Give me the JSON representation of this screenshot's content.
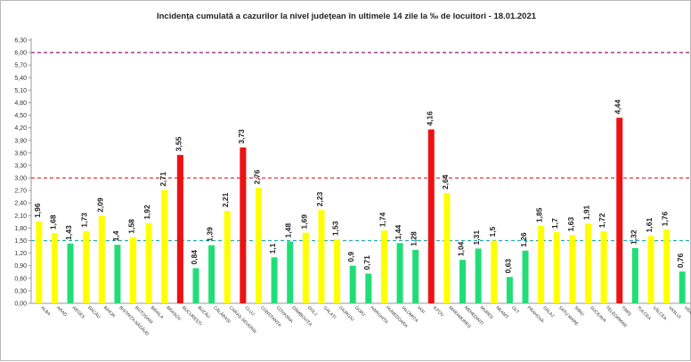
{
  "chart_data": {
    "type": "bar",
    "title": "Incidența cumulată a cazurilor la nivel județean în ultimele 14 zile la ‰ de locuitori - 18.01.2021",
    "xlabel": "",
    "ylabel": "",
    "ylim": [
      0,
      6.3
    ],
    "yticks": [
      "0,00",
      "0,30",
      "0,60",
      "0,90",
      "1,20",
      "1,50",
      "1,80",
      "2,10",
      "2,40",
      "2,70",
      "3,00",
      "3,30",
      "3,60",
      "3,90",
      "4,20",
      "4,50",
      "4,80",
      "5,10",
      "5,40",
      "5,70",
      "6,00",
      "6,30"
    ],
    "grid": false,
    "thresholds": [
      {
        "value": 1.5,
        "color": "#2aa7b5"
      },
      {
        "value": 3.0,
        "color": "#d61f1f"
      },
      {
        "value": 6.0,
        "color": "#8b1a6b"
      }
    ],
    "colors": {
      "green": "#22dd77",
      "yellow": "#ffff00",
      "red": "#ee1111"
    },
    "categories": [
      "ALBA",
      "ARAD",
      "ARGEȘ",
      "BACĂU",
      "BIHOR",
      "BISTRIȚA NĂSĂUD",
      "BOTOȘANI",
      "BRAILA",
      "BRASOV",
      "BUCUREȘTI",
      "BUZĂU",
      "CĂLĂRAȘI",
      "CARAȘ-SEVERIN",
      "CLUJ",
      "CONSTANȚA",
      "COVASNA",
      "DÂMBOVIȚA",
      "DOLJ",
      "GALAȚI",
      "GIURGIU",
      "GORJ",
      "HARGHITA",
      "HUNEDOARA",
      "IALOMIȚA",
      "IAȘI",
      "ILFOV",
      "MARAMUREȘ",
      "MEHEDINȚI",
      "MUREȘ",
      "NEAMȚ",
      "OLT",
      "PRAHOVA",
      "SĂLAJ",
      "SATU MARE",
      "SIBIU",
      "SUCEAVA",
      "TELEORMAN",
      "TIMIȘ",
      "TULCEA",
      "VÂLCEA",
      "VASLUI",
      "VRANCEA"
    ],
    "values": [
      1.96,
      1.68,
      1.43,
      1.73,
      2.09,
      1.4,
      1.58,
      1.92,
      2.71,
      3.55,
      0.84,
      1.39,
      2.21,
      3.73,
      2.76,
      1.1,
      1.48,
      1.69,
      2.23,
      1.53,
      0.9,
      0.71,
      1.74,
      1.44,
      1.28,
      4.16,
      2.64,
      1.04,
      1.31,
      1.5,
      0.63,
      1.26,
      1.85,
      1.7,
      1.63,
      1.91,
      1.72,
      4.44,
      1.32,
      1.61,
      1.76,
      0.76
    ],
    "value_labels": [
      "1,96",
      "1,68",
      "1,43",
      "1,73",
      "2,09",
      "1,4",
      "1,58",
      "1,92",
      "2,71",
      "3,55",
      "0,84",
      "1,39",
      "2,21",
      "3,73",
      "2,76",
      "1,1",
      "1,48",
      "1,69",
      "2,23",
      "1,53",
      "0,9",
      "0,71",
      "1,74",
      "1,44",
      "1,28",
      "4,16",
      "2,64",
      "1,04",
      "1,31",
      "1,5",
      "0,63",
      "1,26",
      "1,85",
      "1,7",
      "1,63",
      "1,91",
      "1,72",
      "4,44",
      "1,32",
      "1,61",
      "1,76",
      "0,76"
    ],
    "bar_colors": [
      "yellow",
      "yellow",
      "green",
      "yellow",
      "yellow",
      "green",
      "yellow",
      "yellow",
      "yellow",
      "red",
      "green",
      "green",
      "yellow",
      "red",
      "yellow",
      "green",
      "green",
      "yellow",
      "yellow",
      "yellow",
      "green",
      "green",
      "yellow",
      "green",
      "green",
      "red",
      "yellow",
      "green",
      "green",
      "yellow",
      "green",
      "green",
      "yellow",
      "yellow",
      "yellow",
      "yellow",
      "yellow",
      "red",
      "green",
      "yellow",
      "yellow",
      "green"
    ]
  }
}
